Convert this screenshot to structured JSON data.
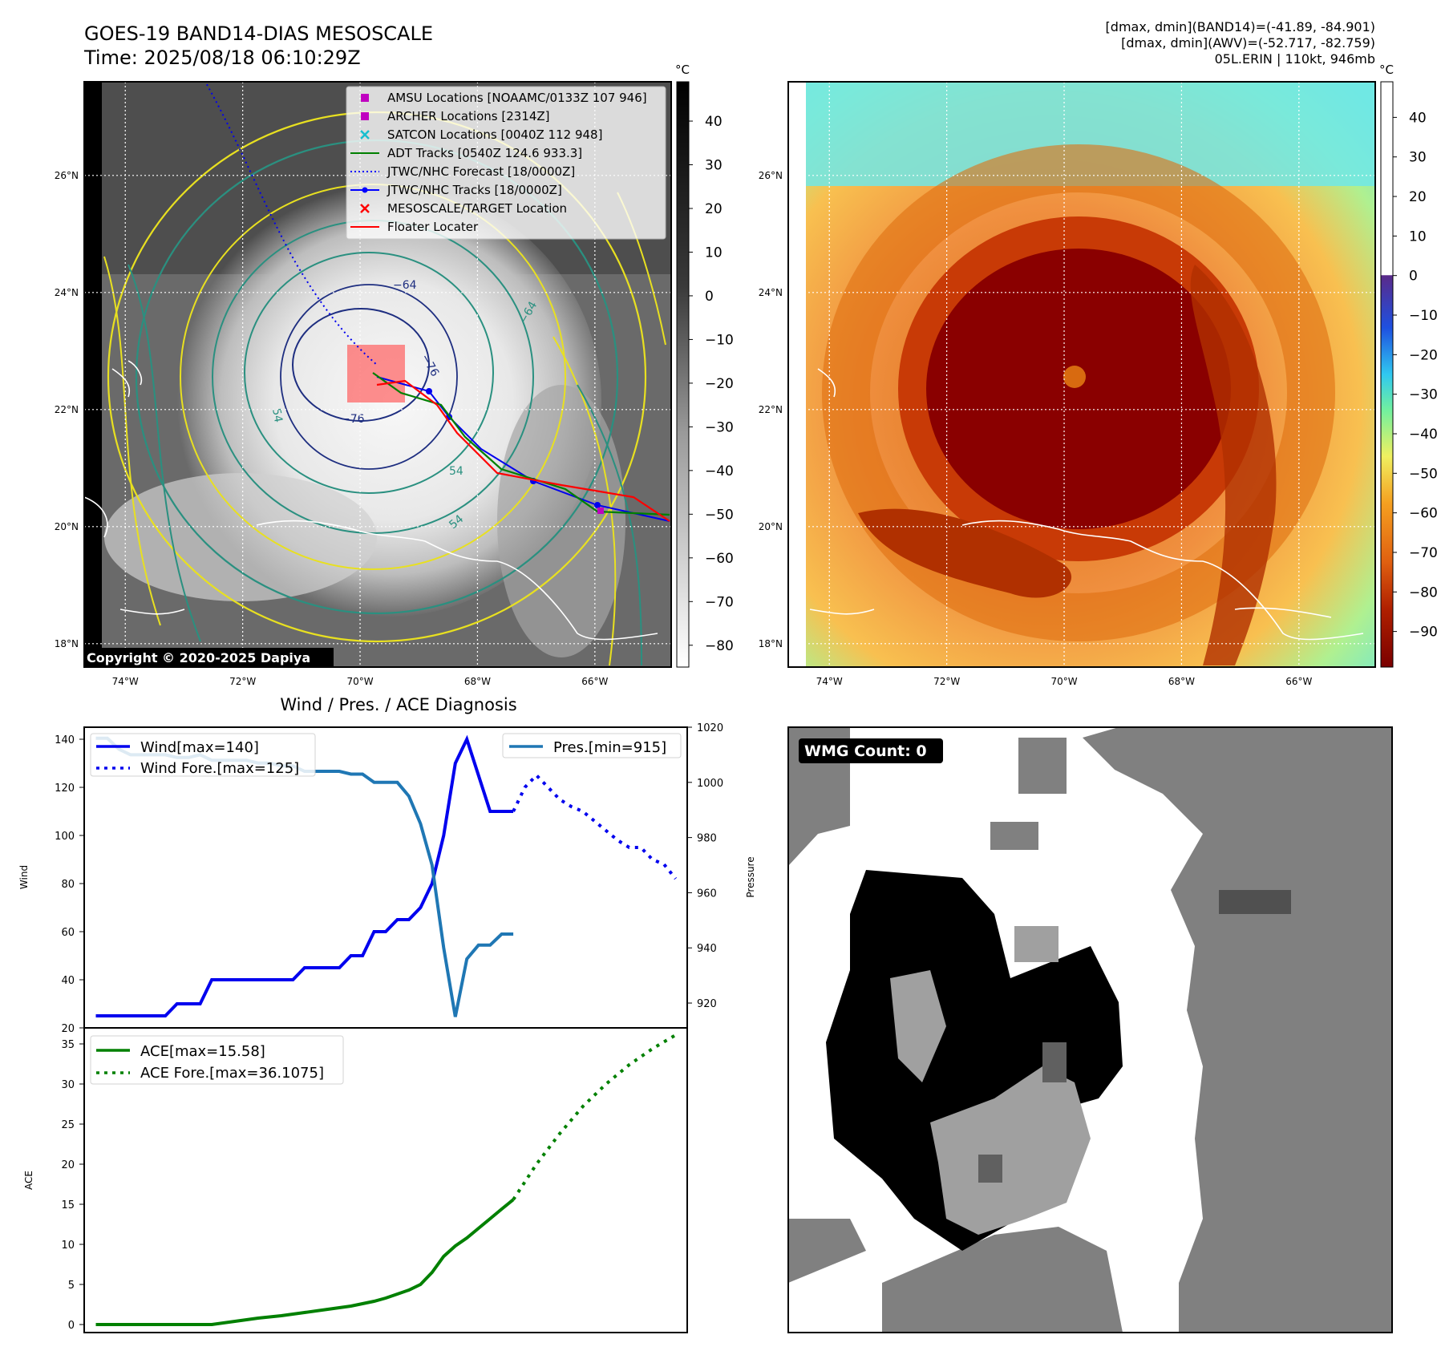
{
  "header": {
    "title_line1": "GOES-19 BAND14-DIAS MESOSCALE",
    "title_line2": "Time: 2025/08/18 06:10:29Z",
    "stats_line1": "[dmax, dmin](BAND14)=(-41.89, -84.901)",
    "stats_line2": "[dmax, dmin](AWV)=(-52.717, -82.759)",
    "stats_line3": "05L.ERIN | 110kt, 946mb"
  },
  "map_ir": {
    "lat_labels": [
      "26°N",
      "24°N",
      "22°N",
      "20°N",
      "18°N"
    ],
    "lat_values": [
      26,
      24,
      22,
      20,
      18
    ],
    "lon_labels": [
      "74°W",
      "72°W",
      "70°W",
      "68°W",
      "66°W"
    ],
    "lon_values": [
      -74,
      -72,
      -70,
      -68,
      -66
    ],
    "lon_range": [
      -74.7,
      -64.7
    ],
    "lat_range": [
      17.6,
      27.6
    ],
    "copyright": "Copyright © 2020-2025 Dapiya",
    "colorbar_unit": "°C",
    "colorbar_ticks": [
      40,
      30,
      20,
      10,
      0,
      -10,
      -20,
      -30,
      -40,
      -50,
      -60,
      -70,
      -80
    ],
    "colorbar_tick_labels": [
      "40",
      "30",
      "20",
      "10",
      "0",
      "−10",
      "−20",
      "−30",
      "−40",
      "−50",
      "−60",
      "−70",
      "−80"
    ],
    "colorbar_range": [
      -85,
      49
    ],
    "contour_labels": [
      "−64",
      "−76",
      "−76",
      "54",
      "54",
      "−64",
      "54"
    ],
    "legend": [
      {
        "label": "AMSU Locations [NOAAMC/0133Z 107 946]",
        "symbol": "square",
        "color": "#c000c0"
      },
      {
        "label": "ARCHER Locations [2314Z]",
        "symbol": "square",
        "color": "#c000c0"
      },
      {
        "label": "SATCON Locations [0040Z 112 948]",
        "symbol": "x",
        "color": "#17becf"
      },
      {
        "label": "ADT Tracks [0540Z 124.6 933.3]",
        "symbol": "line",
        "color": "#008000"
      },
      {
        "label": "JTWC/NHC Forecast [18/0000Z]",
        "symbol": "dotted",
        "color": "#0000ff"
      },
      {
        "label": "JTWC/NHC Tracks [18/0000Z]",
        "symbol": "line-dot",
        "color": "#0000ff"
      },
      {
        "label": "MESOSCALE/TARGET Location",
        "symbol": "x",
        "color": "#ff0000"
      },
      {
        "label": "Floater Locater",
        "symbol": "line",
        "color": "#ff0000"
      }
    ]
  },
  "map_awv": {
    "lat_labels": [
      "26°N",
      "24°N",
      "22°N",
      "20°N",
      "18°N"
    ],
    "lat_values": [
      26,
      24,
      22,
      20,
      18
    ],
    "lon_labels": [
      "74°W",
      "72°W",
      "70°W",
      "68°W",
      "66°W"
    ],
    "lon_values": [
      -74,
      -72,
      -70,
      -68,
      -66
    ],
    "lon_range": [
      -74.7,
      -64.7
    ],
    "lat_range": [
      17.6,
      27.6
    ],
    "colorbar_unit": "°C",
    "colorbar_ticks": [
      40,
      30,
      20,
      10,
      0,
      -10,
      -20,
      -30,
      -40,
      -50,
      -60,
      -70,
      -80,
      -90
    ],
    "colorbar_tick_labels": [
      "40",
      "30",
      "20",
      "10",
      "0",
      "−10",
      "−20",
      "−30",
      "−40",
      "−50",
      "−60",
      "−70",
      "−80",
      "−90"
    ],
    "colorbar_range": [
      -99,
      49
    ]
  },
  "wmg": {
    "label": "WMG Count: 0"
  },
  "chart_data": [
    {
      "type": "line",
      "title": "Wind / Pres. / ACE Diagnosis",
      "ylabel": "Wind",
      "ylabel_right": "Pressure",
      "xlim": [
        -1,
        51
      ],
      "ylim": [
        20,
        145
      ],
      "y_ticks": [
        20,
        40,
        60,
        80,
        100,
        120,
        140
      ],
      "ylim_right": [
        911,
        1020
      ],
      "y_ticks_right": [
        920,
        940,
        960,
        980,
        1000,
        1020
      ],
      "series": [
        {
          "name": "Wind[max=140]",
          "axis": "left",
          "style": "solid",
          "color": "#0000ee",
          "x": [
            0,
            1,
            2,
            3,
            4,
            5,
            6,
            7,
            8,
            9,
            10,
            11,
            12,
            13,
            14,
            15,
            16,
            17,
            18,
            19,
            20,
            21,
            22,
            23,
            24,
            25,
            26,
            27,
            28,
            29,
            30,
            31,
            32,
            33,
            34,
            35,
            36
          ],
          "values": [
            25,
            25,
            25,
            25,
            25,
            25,
            25,
            30,
            30,
            30,
            40,
            40,
            40,
            40,
            40,
            40,
            40,
            40,
            45,
            45,
            45,
            45,
            50,
            50,
            60,
            60,
            65,
            65,
            70,
            80,
            100,
            130,
            140,
            125,
            110,
            110,
            110
          ]
        },
        {
          "name": "Wind Fore.[max=125]",
          "axis": "left",
          "style": "dotted",
          "color": "#0000ee",
          "x": [
            36,
            37,
            38,
            39,
            40,
            41,
            42,
            43,
            44,
            45,
            46,
            47,
            48,
            49,
            50
          ],
          "values": [
            110,
            120,
            125,
            120,
            115,
            112,
            110,
            106,
            102,
            98,
            95,
            95,
            90,
            88,
            82
          ]
        },
        {
          "name": "Pres.[min=915]",
          "axis": "right",
          "style": "solid",
          "color": "#1f77b4",
          "x": [
            0,
            1,
            2,
            3,
            4,
            5,
            6,
            7,
            8,
            9,
            10,
            11,
            12,
            13,
            14,
            15,
            16,
            17,
            18,
            19,
            20,
            21,
            22,
            23,
            24,
            25,
            26,
            27,
            28,
            29,
            30,
            31,
            32,
            33,
            34,
            35,
            36
          ],
          "values": [
            1016,
            1016,
            1012,
            1010,
            1010,
            1010,
            1010,
            1009,
            1009,
            1010,
            1008,
            1008,
            1008,
            1008,
            1007,
            1007,
            1006,
            1006,
            1004,
            1004,
            1004,
            1004,
            1003,
            1003,
            1000,
            1000,
            1000,
            995,
            985,
            970,
            940,
            915,
            936,
            941,
            941,
            945,
            945
          ]
        }
      ]
    },
    {
      "type": "line",
      "ylabel": "ACE",
      "xlim": [
        -1,
        51
      ],
      "ylim": [
        -1,
        37
      ],
      "y_ticks": [
        0,
        5,
        10,
        15,
        20,
        25,
        30,
        35
      ],
      "series": [
        {
          "name": "ACE[max=15.58]",
          "style": "solid",
          "color": "#008000",
          "x": [
            0,
            2,
            4,
            6,
            8,
            10,
            12,
            14,
            16,
            18,
            20,
            22,
            24,
            25,
            26,
            27,
            28,
            29,
            30,
            31,
            32,
            33,
            34,
            35,
            36
          ],
          "values": [
            0,
            0,
            0,
            0,
            0,
            0,
            0.4,
            0.8,
            1.1,
            1.5,
            1.9,
            2.3,
            2.9,
            3.3,
            3.8,
            4.3,
            5.0,
            6.5,
            8.5,
            9.8,
            10.8,
            12.0,
            13.2,
            14.4,
            15.58
          ]
        },
        {
          "name": "ACE Fore.[max=36.1075]",
          "style": "dotted",
          "color": "#008000",
          "x": [
            36,
            38,
            40,
            42,
            44,
            46,
            48,
            50
          ],
          "values": [
            15.58,
            20.0,
            23.8,
            27.2,
            30.0,
            32.4,
            34.4,
            36.1075
          ]
        }
      ]
    }
  ]
}
